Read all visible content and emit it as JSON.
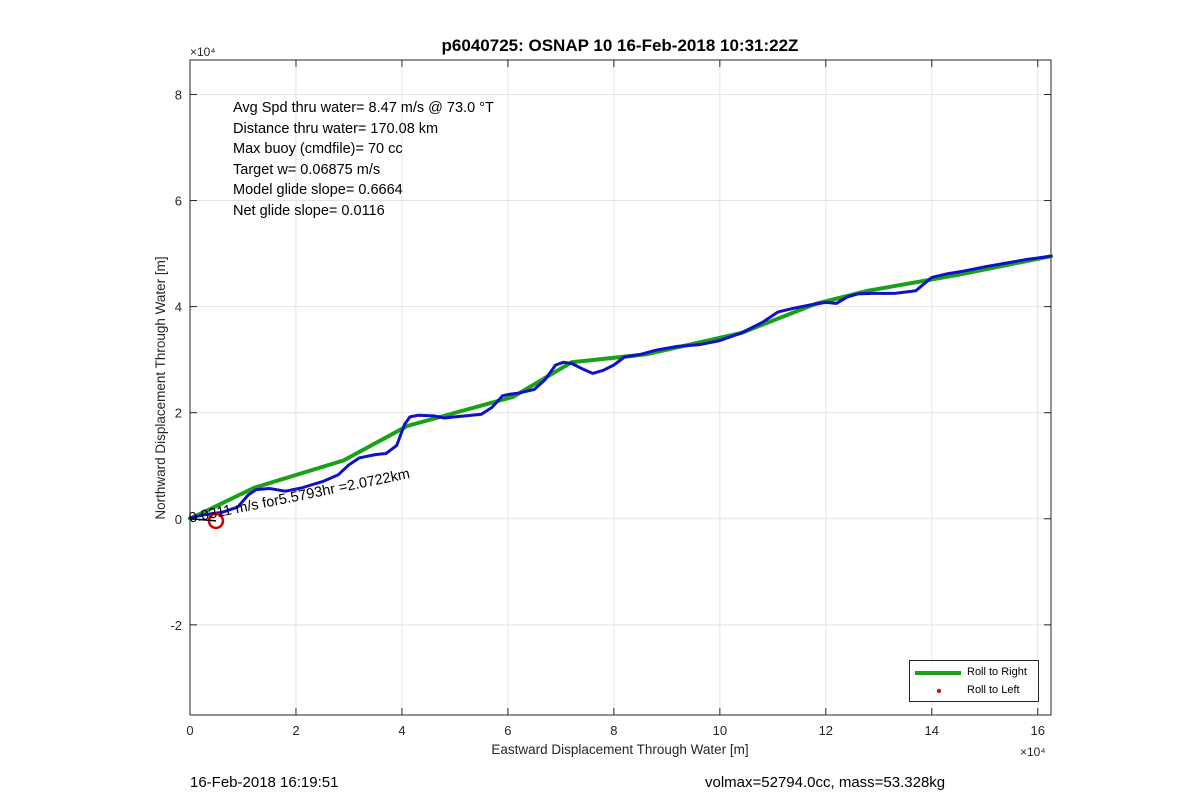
{
  "title": "p6040725: OSNAP 10 16-Feb-2018 10:31:22Z",
  "annotations": [
    "Avg Spd thru water=  8.47 m/s @  73.0 °T",
    "Distance thru water= 170.08 km",
    "Max buoy (cmdfile)= 70 cc",
    "Target w= 0.06875 m/s",
    "Model glide slope= 0.6664",
    "Net glide slope= 0.0116"
  ],
  "current_label": "0.0311 m/s for5.5793hr =2.0722km",
  "footer": {
    "timestamp": "16-Feb-2018 16:19:51",
    "info": "volmax=52794.0cc, mass=53.328kg"
  },
  "colors": {
    "roll_right": "#1aa11a",
    "roll_left": "#e00000",
    "track": "#1010c8",
    "current_marker": "#d00000",
    "grid": "#e3e3e3"
  },
  "chart_data": {
    "type": "line",
    "title": "p6040725: OSNAP 10 16-Feb-2018 10:31:22Z",
    "xlabel": "Eastward Displacement Through Water [m]",
    "ylabel": "Northward Displacement Through Water [m]",
    "x_exponent_label": "×10⁴",
    "y_exponent_label": "×10⁴",
    "xlim": [
      0,
      162500
    ],
    "ylim": [
      -37000,
      86500
    ],
    "x_ticks": [
      0,
      20000,
      40000,
      60000,
      80000,
      100000,
      120000,
      140000,
      160000
    ],
    "x_tick_labels": [
      "0",
      "2",
      "4",
      "6",
      "8",
      "10",
      "12",
      "14",
      "16"
    ],
    "y_ticks": [
      -20000,
      0,
      20000,
      40000,
      60000,
      80000
    ],
    "y_tick_labels": [
      "-2",
      "0",
      "2",
      "4",
      "6",
      "8"
    ],
    "grid": true,
    "legend_position": "bottom-right",
    "series": [
      {
        "name": "Roll to Right",
        "style": "thick-line",
        "x": [
          0,
          12000,
          29000,
          41000,
          61000,
          72000,
          86000,
          104000,
          118000,
          128000,
          145000,
          162500
        ],
        "y": [
          0,
          5800,
          11000,
          17500,
          23000,
          29500,
          31000,
          35000,
          40500,
          43000,
          46000,
          49500
        ]
      },
      {
        "name": "Roll to Left",
        "style": "dot",
        "x": [],
        "y": []
      },
      {
        "name": "track",
        "style": "line",
        "x": [
          0,
          3000,
          6000,
          9000,
          11000,
          12500,
          15000,
          18000,
          21000,
          25000,
          28000,
          30000,
          32000,
          35000,
          37000,
          39000,
          40500,
          41500,
          43000,
          46000,
          48000,
          50000,
          52000,
          55000,
          57000,
          59000,
          60500,
          62000,
          65000,
          67000,
          69000,
          70500,
          72000,
          74000,
          76000,
          78000,
          80000,
          82000,
          85000,
          88000,
          92000,
          96000,
          100000,
          104000,
          108000,
          111000,
          114000,
          117000,
          120000,
          122000,
          124000,
          126000,
          129000,
          133000,
          137000,
          140000,
          143000,
          146000,
          150000,
          154000,
          158000,
          162500
        ],
        "y": [
          200,
          800,
          1200,
          2200,
          4500,
          5500,
          5700,
          5200,
          5800,
          7000,
          8300,
          10200,
          11500,
          12100,
          12300,
          13800,
          17800,
          19200,
          19500,
          19400,
          19000,
          19200,
          19400,
          19700,
          21000,
          23200,
          23500,
          23700,
          24400,
          26200,
          29000,
          29500,
          29300,
          28300,
          27400,
          28000,
          29000,
          30500,
          31000,
          31800,
          32500,
          32800,
          33600,
          35000,
          37000,
          39000,
          39700,
          40300,
          40800,
          40600,
          41800,
          42400,
          42500,
          42500,
          43000,
          45500,
          46200,
          46700,
          47500,
          48200,
          48900,
          49500
        ]
      }
    ],
    "current_marker": {
      "x": 4900,
      "y": -400
    }
  },
  "legend": {
    "items": [
      {
        "label": "Roll to Right",
        "marker": "line"
      },
      {
        "label": "Roll to Left",
        "marker": "dot"
      }
    ]
  }
}
